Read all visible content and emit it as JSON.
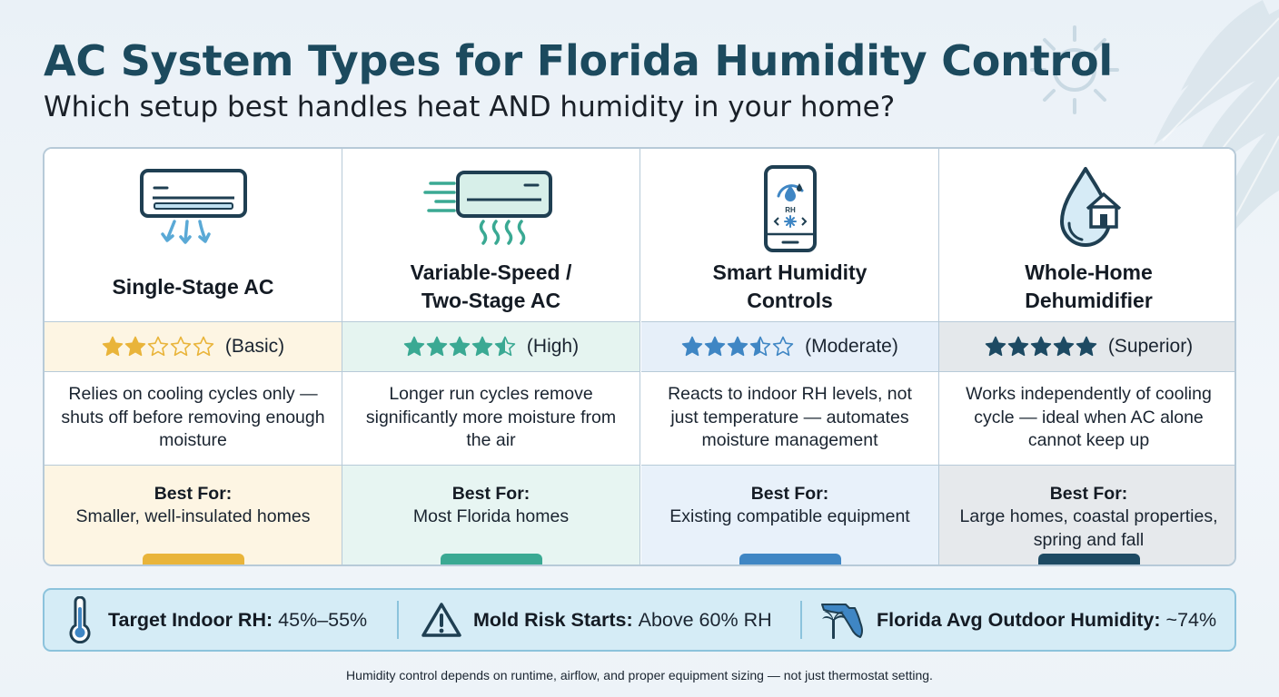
{
  "header": {
    "title": "AC System Types for Florida Humidity Control",
    "subtitle": "Which setup best handles heat AND humidity in your home?"
  },
  "best_for_heading": "Best For:",
  "columns": [
    {
      "name": "Single-Stage AC",
      "icon": "wall-ac-unit-icon",
      "stars": 2,
      "rating_label": "(Basic)",
      "description": "Relies on cooling cycles only — shuts off before removing enough moisture",
      "best_for": "Smaller, well-insulated homes",
      "accent": "#e9b43a",
      "best_bg": "#fdf5e3",
      "rating_bg": "#fdf5e3"
    },
    {
      "name": "Variable-Speed /\nTwo-Stage AC",
      "icon": "variable-speed-ac-icon",
      "stars": 4.5,
      "rating_label": "(High)",
      "description": "Longer run cycles remove significantly more moisture from the air",
      "best_for": "Most Florida homes",
      "accent": "#3aa993",
      "best_bg": "#e7f5f2",
      "rating_bg": "#e5f4f0"
    },
    {
      "name": "Smart Humidity\nControls",
      "icon": "smartphone-humidity-icon",
      "stars": 3.5,
      "rating_label": "(Moderate)",
      "description": "Reacts to indoor RH levels, not just temperature — automates moisture management",
      "best_for": "Existing compatible equipment",
      "accent": "#3f86c4",
      "best_bg": "#e8f1fa",
      "rating_bg": "#e6eff9"
    },
    {
      "name": "Whole-Home\nDehumidifier",
      "icon": "water-drop-house-icon",
      "stars": 5,
      "rating_label": "(Superior)",
      "description": "Works independently of cooling cycle — ideal when AC alone cannot keep up",
      "best_for": "Large homes, coastal properties, spring and fall",
      "accent": "#1d4a63",
      "best_bg": "#e6e9ec",
      "rating_bg": "#e4e8eb"
    }
  ],
  "phone_screen": {
    "rh_label": "RH"
  },
  "stats": [
    {
      "label": "Target Indoor RH:",
      "value": "45%–55%",
      "icon": "thermometer-icon"
    },
    {
      "label": "Mold Risk Starts:",
      "value": "Above 60% RH",
      "icon": "warning-triangle-icon"
    },
    {
      "label": "Florida Avg Outdoor Humidity:",
      "value": "~74%",
      "icon": "florida-map-palm-icon"
    }
  ],
  "footnote": "Humidity control depends on runtime, airflow, and proper equipment sizing — not just thermostat setting."
}
